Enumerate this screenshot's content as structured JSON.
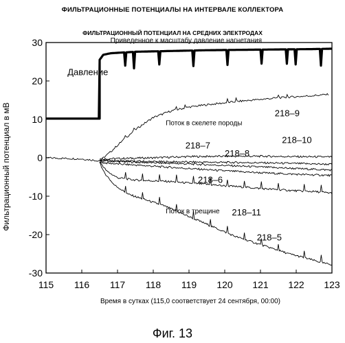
{
  "header": {
    "title": "ФИЛЬТРАЦИОННЫЕ ПОТЕНЦИАЛЫ НА ИНТЕРВАЛЕ КОЛЛЕКТОРА",
    "subtitle": "ФИЛЬТРАЦИОННЫЙ ПОТЕНЦИАЛ НА СРЕДНИХ ЭЛЕКТРОДАХ",
    "caption": "Фиг. 13"
  },
  "chart_data": {
    "type": "line",
    "title": "ФИЛЬТРАЦИОННЫЙ ПОТЕНЦИАЛ НА СРЕДНИХ ЭЛЕКТРОДАХ",
    "xlabel": "Время в сутках (115,0 соответствует 24 сентября, 00:00)",
    "ylabel": "Фильтрационный потенциал в мВ",
    "xlim": [
      115,
      123
    ],
    "ylim": [
      -30,
      30
    ],
    "x_ticks": [
      115,
      116,
      117,
      118,
      119,
      120,
      121,
      122,
      123
    ],
    "y_ticks": [
      -30,
      -20,
      -10,
      0,
      10,
      20,
      30
    ],
    "grid": false,
    "series": [
      {
        "name": "Приведенное к масштабу давление нагнетания",
        "label": "Давление",
        "x": [
          115.0,
          116.5,
          116.5,
          116.6,
          116.8,
          117.5,
          118.5,
          119.5,
          120.5,
          121.5,
          122.5,
          123.0
        ],
        "y": [
          10.2,
          10.2,
          25.5,
          26.8,
          27.2,
          27.6,
          27.8,
          28.0,
          28.1,
          28.2,
          28.3,
          28.4
        ]
      },
      {
        "name": "218-9",
        "x": [
          115.0,
          116.0,
          116.5,
          116.8,
          117.2,
          117.6,
          118.0,
          118.5,
          119.0,
          119.5,
          120.0,
          120.5,
          121.0,
          121.5,
          122.0,
          122.5,
          122.9
        ],
        "y": [
          0.0,
          -0.3,
          -0.8,
          1.5,
          5.0,
          8.0,
          10.5,
          12.2,
          13.2,
          13.8,
          14.3,
          14.8,
          15.2,
          15.6,
          15.9,
          16.2,
          16.5
        ]
      },
      {
        "name": "218-7",
        "x": [
          116.5,
          117.0,
          118.0,
          119.0,
          120.0,
          121.0,
          122.0,
          123.0
        ],
        "y": [
          -0.3,
          -0.2,
          0.0,
          0.3,
          0.4,
          0.4,
          0.3,
          0.2
        ]
      },
      {
        "name": "218-8",
        "x": [
          116.5,
          117.0,
          118.0,
          119.0,
          120.0,
          121.0,
          122.0,
          123.0
        ],
        "y": [
          -0.6,
          -0.8,
          -1.0,
          -1.1,
          -1.2,
          -1.3,
          -1.5,
          -1.7
        ]
      },
      {
        "name": "218-10",
        "x": [
          116.5,
          117.0,
          118.0,
          119.0,
          120.0,
          121.0,
          122.0,
          123.0
        ],
        "y": [
          -0.8,
          -1.0,
          -1.3,
          -1.6,
          -2.0,
          -2.4,
          -2.8,
          -3.2
        ]
      },
      {
        "name": "218-6",
        "x": [
          116.5,
          117.0,
          118.0,
          119.0,
          120.0,
          121.0,
          122.0,
          123.0
        ],
        "y": [
          -1.2,
          -1.6,
          -2.2,
          -2.8,
          -3.4,
          -3.9,
          -4.3,
          -4.6
        ]
      },
      {
        "name": "218-11",
        "x": [
          116.5,
          116.7,
          117.0,
          117.5,
          118.0,
          118.5,
          119.0,
          119.5,
          120.0,
          120.5,
          121.0,
          121.5,
          122.0,
          122.5,
          123.0
        ],
        "y": [
          -1.0,
          -3.5,
          -5.2,
          -5.8,
          -6.0,
          -6.2,
          -6.6,
          -6.9,
          -7.3,
          -7.6,
          -8.0,
          -8.3,
          -8.6,
          -8.8,
          -9.2
        ]
      },
      {
        "name": "218-5",
        "x": [
          116.5,
          116.6,
          116.9,
          117.3,
          117.8,
          118.3,
          118.8,
          119.3,
          119.8,
          120.3,
          120.8,
          121.3,
          121.8,
          122.3,
          122.8,
          123.0
        ],
        "y": [
          -1.0,
          -3.5,
          -7.0,
          -9.5,
          -11.0,
          -12.5,
          -14.5,
          -16.5,
          -18.5,
          -20.5,
          -22.0,
          -23.5,
          -25.0,
          -26.2,
          -27.5,
          -27.8
        ]
      }
    ],
    "annotations": [
      {
        "text": "Приведенное к масштабу давление нагнетания",
        "x": 116.8,
        "y": 30.0
      },
      {
        "text": "Давление",
        "x": 115.6,
        "y": 21.5
      },
      {
        "text": "Поток в скелете породы",
        "x": 118.35,
        "y": 8.5
      },
      {
        "text": "218–9",
        "x": 121.4,
        "y": 10.8
      },
      {
        "text": "218–7",
        "x": 118.9,
        "y": 2.4
      },
      {
        "text": "218–8",
        "x": 120.0,
        "y": 0.4
      },
      {
        "text": "218–10",
        "x": 121.6,
        "y": 3.8
      },
      {
        "text": "218–6",
        "x": 119.25,
        "y": -6.5
      },
      {
        "text": "Поток в трещине",
        "x": 118.35,
        "y": -14.5
      },
      {
        "text": "218–11",
        "x": 120.2,
        "y": -15.0
      },
      {
        "text": "218–5",
        "x": 120.9,
        "y": -21.5
      }
    ]
  }
}
